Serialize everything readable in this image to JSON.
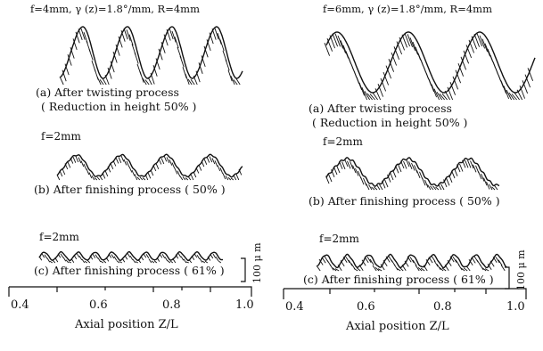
{
  "left": {
    "header": "f=4mm, γ (z)=1.8°/mm, R=4mm",
    "panel_a": {
      "caption": "(a) After twisting process",
      "sub": "( Reduction in height 50% )"
    },
    "panel_b": {
      "f_label": "f=2mm",
      "caption": "(b) After finishing process ( 50% )"
    },
    "panel_c": {
      "f_label": "f=2mm",
      "caption": "(c) After finishing process ( 61% )"
    },
    "scale_label": "100 μ m",
    "axis": {
      "ticks": [
        "0.4",
        "0.6",
        "0.8",
        "1.0"
      ],
      "label": "Axial position  Z/L"
    }
  },
  "right": {
    "header": "f=6mm, γ (z)=1.8°/mm, R=4mm",
    "panel_a": {
      "caption": "(a) After twisting process",
      "sub": "( Reduction in height 50% )"
    },
    "panel_b": {
      "f_label": "f=2mm",
      "caption": "(b) After finishing process ( 50% )"
    },
    "panel_c": {
      "f_label": "f=2mm",
      "caption": "(c) After finishing process ( 61% )"
    },
    "scale_label": "100 μ m",
    "axis": {
      "ticks": [
        "0.4",
        "0.6",
        "0.8",
        "1.0"
      ],
      "label": "Axial position  Z/L"
    }
  }
}
